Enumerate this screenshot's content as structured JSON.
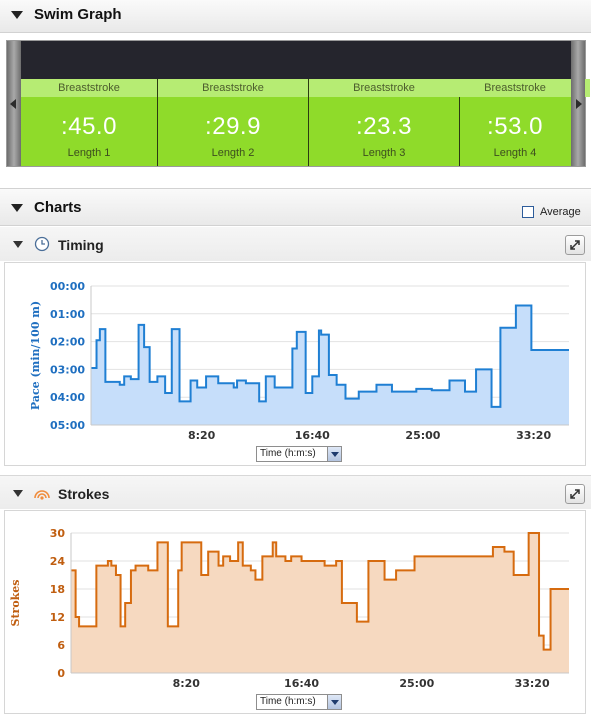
{
  "swim_graph": {
    "title": "Swim Graph",
    "laps": [
      {
        "stroke": "Breaststroke",
        "time": ":45.0",
        "label": "Length 1"
      },
      {
        "stroke": "Breaststroke",
        "time": ":29.9",
        "label": "Length 2"
      },
      {
        "stroke": "Breaststroke",
        "time": ":23.3",
        "label": "Length 3"
      },
      {
        "stroke": "Breaststroke",
        "time": ":53.0",
        "label": "Length 4"
      }
    ]
  },
  "charts": {
    "title": "Charts",
    "average_label": "Average",
    "average_checked": false
  },
  "timing": {
    "title": "Timing",
    "axis_select": "Time (h:m:s)"
  },
  "strokes": {
    "title": "Strokes",
    "axis_select": "Time (h:m:s)"
  },
  "colors": {
    "pace_line": "#1f7fd3",
    "pace_fill": "#c6defa",
    "stroke_line": "#d66b0f",
    "stroke_fill": "#f6d9c0",
    "lap_green": "#8fdb2a"
  },
  "chart_data": [
    {
      "type": "line",
      "title": "Timing",
      "ylabel": "Pace (min/100 m)",
      "xlabel": "Time (h:m:s)",
      "x_ticks": [
        "8:20",
        "16:40",
        "25:00",
        "33:20"
      ],
      "x_tick_values": [
        500,
        1000,
        1500,
        2000
      ],
      "xlim": [
        0,
        2160
      ],
      "y_ticks": [
        "00:00",
        "01:00",
        "02:00",
        "03:00",
        "04:00",
        "05:00"
      ],
      "ylim": [
        0,
        5
      ],
      "y_inverted": true,
      "step": true,
      "series": [
        {
          "x": [
            0,
            25,
            40,
            65,
            110,
            130,
            150,
            180,
            215,
            240,
            265,
            300,
            320,
            335,
            355,
            365,
            400,
            410,
            450,
            460,
            480,
            520,
            535,
            575,
            590,
            615,
            645,
            660,
            680,
            700,
            720,
            760,
            770,
            790,
            810,
            830,
            870,
            910,
            930,
            950,
            970,
            990,
            1000,
            1030,
            1040,
            1075,
            1110,
            1135,
            1150,
            1200,
            1210,
            1260,
            1290,
            1315,
            1360,
            1420,
            1450,
            1470,
            1510,
            1540,
            1575,
            1620,
            1660,
            1690,
            1740,
            1780,
            1810,
            1850,
            1880,
            1920,
            1960,
            1990,
            2010,
            2050,
            2070,
            2090,
            2110,
            2130,
            2145,
            2160
          ],
          "y": [
            2.95,
            1.95,
            1.55,
            3.45,
            3.45,
            3.55,
            3.25,
            3.35,
            1.4,
            2.2,
            3.45,
            3.25,
            3.25,
            3.85,
            3.85,
            1.55,
            4.15,
            4.15,
            3.4,
            3.4,
            3.65,
            3.25,
            3.25,
            3.5,
            3.5,
            3.5,
            3.65,
            3.4,
            3.4,
            3.5,
            3.5,
            4.15,
            4.15,
            3.25,
            3.25,
            3.65,
            3.65,
            2.25,
            1.65,
            1.65,
            3.85,
            3.85,
            3.25,
            1.6,
            1.75,
            3.2,
            3.55,
            3.55,
            4.05,
            4.05,
            3.8,
            3.8,
            3.55,
            3.55,
            3.8,
            3.8,
            3.8,
            3.7,
            3.7,
            3.75,
            3.75,
            3.4,
            3.4,
            3.8,
            3.0,
            3.0,
            4.35,
            1.5,
            1.5,
            0.7,
            0.7,
            2.3,
            2.3,
            2.3,
            2.3,
            2.3,
            2.3,
            2.3,
            2.3,
            2.3
          ]
        }
      ]
    },
    {
      "type": "line",
      "title": "Strokes",
      "ylabel": "Strokes",
      "xlabel": "Time (h:m:s)",
      "x_ticks": [
        "8:20",
        "16:40",
        "25:00",
        "33:20"
      ],
      "x_tick_values": [
        500,
        1000,
        1500,
        2000
      ],
      "xlim": [
        0,
        2160
      ],
      "y_ticks": [
        "30",
        "24",
        "18",
        "12",
        "6",
        "0"
      ],
      "ylim": [
        0,
        30
      ],
      "step": true,
      "series": [
        {
          "x": [
            0,
            20,
            35,
            110,
            160,
            175,
            195,
            215,
            235,
            260,
            280,
            305,
            335,
            375,
            420,
            465,
            480,
            530,
            565,
            595,
            640,
            660,
            690,
            725,
            745,
            780,
            800,
            830,
            860,
            875,
            890,
            930,
            955,
            1000,
            1020,
            1100,
            1150,
            1175,
            1240,
            1290,
            1360,
            1410,
            1490,
            1590,
            1690,
            1780,
            1830,
            1855,
            1880,
            1900,
            1920,
            1960,
            1985,
            2005,
            2030,
            2050,
            2080,
            2110,
            2130,
            2160
          ],
          "y": [
            22,
            12,
            10,
            23,
            24,
            23,
            21,
            10,
            15,
            22,
            23,
            23,
            22,
            28,
            10,
            22,
            28,
            28,
            21,
            26,
            23,
            25,
            24,
            28,
            23,
            22,
            20,
            25,
            25,
            28,
            25,
            24,
            25,
            24,
            24,
            23,
            24,
            15,
            11,
            24,
            20,
            22,
            25,
            25,
            25,
            25,
            27,
            27,
            26,
            26,
            21,
            21,
            30,
            30,
            8,
            5,
            18,
            18,
            18,
            18
          ]
        }
      ]
    }
  ]
}
